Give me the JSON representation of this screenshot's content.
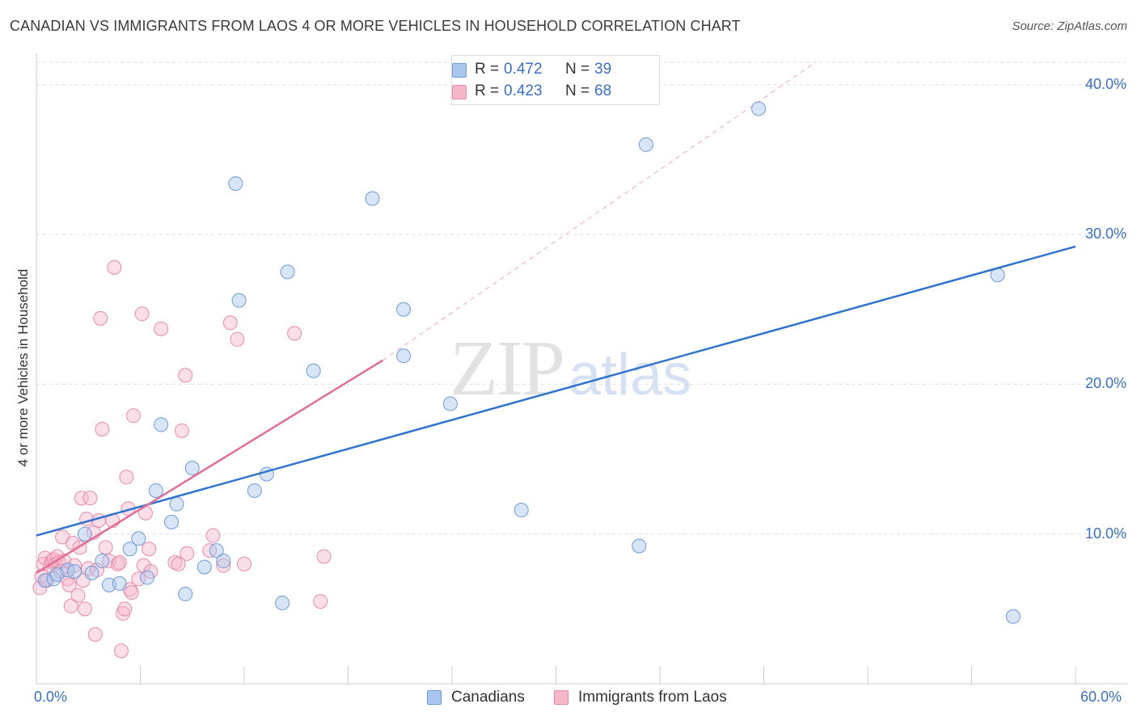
{
  "title": "CANADIAN VS IMMIGRANTS FROM LAOS 4 OR MORE VEHICLES IN HOUSEHOLD CORRELATION CHART",
  "source": "Source: ZipAtlas.com",
  "watermark": {
    "zip": "ZIP",
    "atlas": "atlas"
  },
  "legend": {
    "r_label": "R =",
    "n_label": "N =",
    "items": [
      {
        "name": "Canadians",
        "r": "0.472",
        "n": "39",
        "fill": "#a8c6ee",
        "stroke": "#6f9ad6"
      },
      {
        "name": "Immigrants from Laos",
        "r": "0.423",
        "n": "68",
        "fill": "#f7b7cb",
        "stroke": "#e88aa8"
      }
    ]
  },
  "colors": {
    "blue_point_fill": "rgba(168,198,238,0.45)",
    "blue_point_stroke": "#6f9ad6",
    "pink_point_fill": "rgba(247,183,203,0.45)",
    "pink_point_stroke": "#e88aa8",
    "blue_line": "#2f73d0",
    "pink_line": "#e07098",
    "grid": "#dddddd",
    "axis_text": "#3a6fc4"
  },
  "chart_data": {
    "type": "scatter",
    "title": "CANADIAN VS IMMIGRANTS FROM LAOS 4 OR MORE VEHICLES IN HOUSEHOLD CORRELATION CHART",
    "xlabel": "",
    "ylabel": "4 or more Vehicles in Household",
    "xlim": [
      0,
      60
    ],
    "ylim": [
      0,
      41.5
    ],
    "x_tick_labels": [
      "0.0%",
      "60.0%"
    ],
    "y_ticks": [
      10,
      20,
      30,
      40
    ],
    "y_tick_labels": [
      "10.0%",
      "20.0%",
      "30.0%",
      "40.0%"
    ],
    "grid": true,
    "legend_position": "top-center",
    "series": [
      {
        "name": "Canadians",
        "points": [
          [
            0.5,
            6.9
          ],
          [
            1.0,
            7.0
          ],
          [
            1.2,
            7.3
          ],
          [
            1.8,
            7.6
          ],
          [
            2.2,
            7.5
          ],
          [
            2.8,
            10.0
          ],
          [
            3.2,
            7.4
          ],
          [
            3.8,
            8.2
          ],
          [
            4.2,
            6.6
          ],
          [
            4.8,
            6.7
          ],
          [
            5.4,
            9.0
          ],
          [
            5.9,
            9.7
          ],
          [
            6.4,
            7.1
          ],
          [
            6.9,
            12.9
          ],
          [
            7.2,
            17.3
          ],
          [
            7.8,
            10.8
          ],
          [
            8.1,
            12.0
          ],
          [
            8.6,
            6.0
          ],
          [
            9.0,
            14.4
          ],
          [
            9.7,
            7.8
          ],
          [
            10.4,
            8.9
          ],
          [
            10.8,
            8.2
          ],
          [
            11.5,
            33.4
          ],
          [
            11.7,
            25.6
          ],
          [
            12.6,
            12.9
          ],
          [
            13.3,
            14.0
          ],
          [
            14.2,
            5.4
          ],
          [
            14.5,
            27.5
          ],
          [
            16.0,
            20.9
          ],
          [
            19.4,
            32.4
          ],
          [
            21.2,
            21.9
          ],
          [
            21.2,
            25.0
          ],
          [
            23.9,
            18.7
          ],
          [
            28.0,
            11.6
          ],
          [
            34.8,
            9.2
          ],
          [
            35.2,
            36.0
          ],
          [
            41.7,
            38.4
          ],
          [
            55.5,
            27.3
          ],
          [
            56.4,
            4.5
          ]
        ]
      },
      {
        "name": "Immigrants from Laos",
        "points": [
          [
            0.2,
            6.4
          ],
          [
            0.3,
            7.2
          ],
          [
            0.4,
            8.0
          ],
          [
            0.5,
            8.4
          ],
          [
            0.6,
            6.9
          ],
          [
            0.8,
            7.9
          ],
          [
            0.9,
            8.2
          ],
          [
            1.0,
            8.3
          ],
          [
            1.1,
            8.0
          ],
          [
            1.2,
            8.5
          ],
          [
            1.3,
            8.1
          ],
          [
            1.4,
            7.5
          ],
          [
            1.5,
            9.8
          ],
          [
            1.6,
            8.2
          ],
          [
            1.8,
            7.0
          ],
          [
            1.9,
            6.6
          ],
          [
            2.0,
            5.2
          ],
          [
            2.1,
            9.4
          ],
          [
            2.2,
            7.9
          ],
          [
            2.4,
            5.9
          ],
          [
            2.5,
            9.1
          ],
          [
            2.6,
            12.4
          ],
          [
            2.7,
            6.9
          ],
          [
            2.8,
            5.0
          ],
          [
            2.9,
            11.0
          ],
          [
            3.0,
            7.7
          ],
          [
            3.1,
            12.4
          ],
          [
            3.3,
            10.1
          ],
          [
            3.4,
            3.3
          ],
          [
            3.5,
            7.6
          ],
          [
            3.6,
            10.9
          ],
          [
            3.7,
            24.4
          ],
          [
            3.8,
            17.0
          ],
          [
            4.0,
            9.1
          ],
          [
            4.2,
            8.2
          ],
          [
            4.4,
            10.9
          ],
          [
            4.5,
            27.8
          ],
          [
            4.7,
            8.0
          ],
          [
            4.8,
            8.1
          ],
          [
            4.9,
            2.2
          ],
          [
            5.0,
            4.7
          ],
          [
            5.1,
            5.0
          ],
          [
            5.2,
            13.8
          ],
          [
            5.3,
            11.7
          ],
          [
            5.4,
            6.3
          ],
          [
            5.5,
            6.1
          ],
          [
            5.6,
            17.9
          ],
          [
            5.9,
            7.0
          ],
          [
            6.1,
            24.7
          ],
          [
            6.2,
            7.9
          ],
          [
            6.3,
            11.4
          ],
          [
            6.5,
            9.0
          ],
          [
            6.6,
            7.5
          ],
          [
            7.2,
            23.7
          ],
          [
            8.0,
            8.1
          ],
          [
            8.2,
            8.0
          ],
          [
            8.4,
            16.9
          ],
          [
            8.6,
            20.6
          ],
          [
            8.7,
            8.7
          ],
          [
            10.0,
            8.9
          ],
          [
            10.2,
            9.9
          ],
          [
            10.8,
            7.9
          ],
          [
            11.2,
            24.1
          ],
          [
            11.6,
            23.0
          ],
          [
            12.0,
            8.0
          ],
          [
            14.9,
            23.4
          ],
          [
            16.4,
            5.5
          ],
          [
            16.6,
            8.5
          ]
        ]
      }
    ],
    "trend_lines": [
      {
        "series": "Canadians",
        "from": [
          0,
          9.9
        ],
        "to": [
          60,
          29.2
        ],
        "style": "solid"
      },
      {
        "series": "Immigrants from Laos",
        "from": [
          0,
          7.4
        ],
        "to": [
          20,
          21.6
        ],
        "style": "solid"
      },
      {
        "series": "Immigrants from Laos",
        "from": [
          20,
          21.6
        ],
        "to": [
          45,
          41.5
        ],
        "style": "dashed"
      }
    ]
  }
}
